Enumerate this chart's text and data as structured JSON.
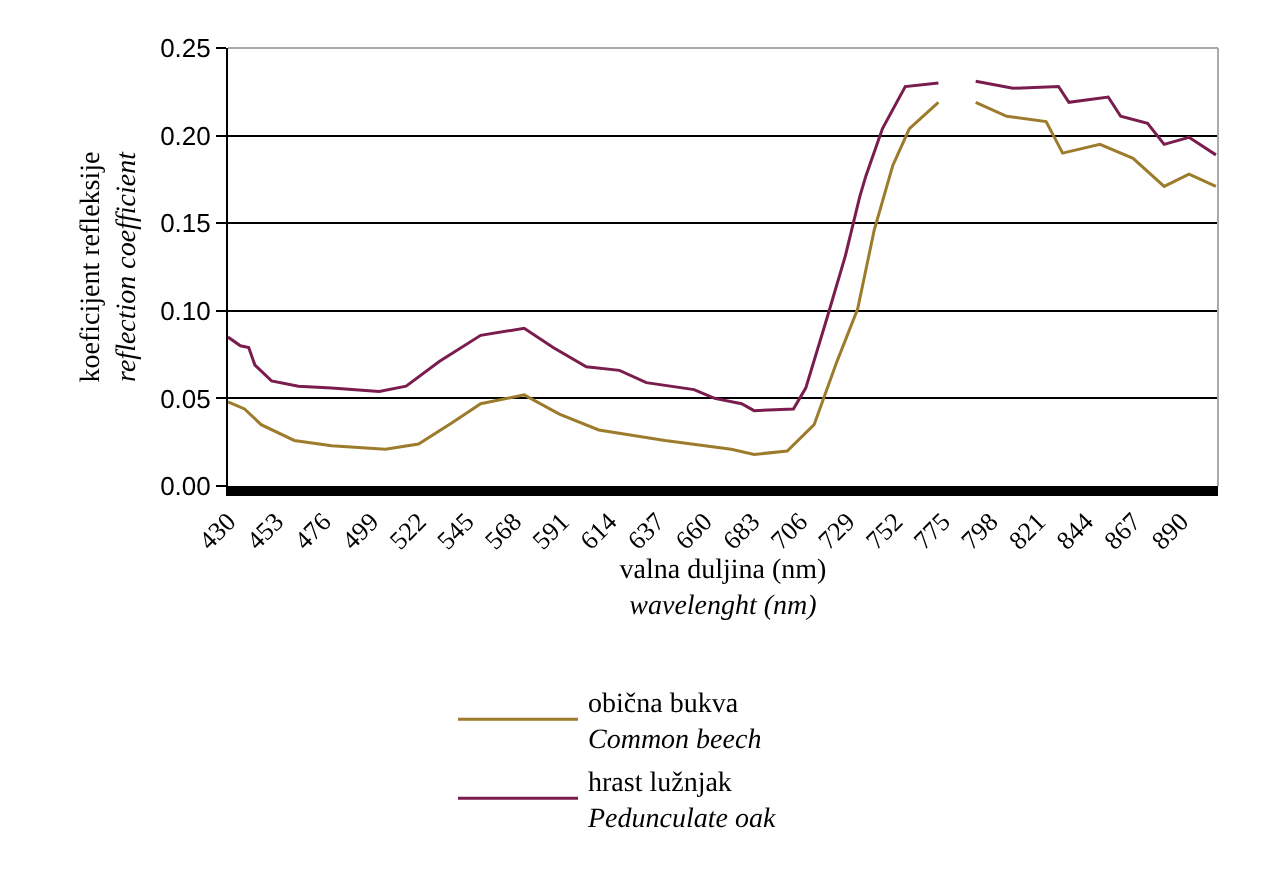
{
  "chart_data": {
    "type": "line",
    "xlabel": "valna duljina (nm)\nwavelenght (nm)",
    "ylabel": "koeficijent refleksije\nreflection coefficient",
    "xlim": [
      430,
      908
    ],
    "xticks": [
      430,
      453,
      476,
      499,
      522,
      545,
      568,
      591,
      614,
      637,
      660,
      683,
      706,
      729,
      752,
      775,
      798,
      821,
      844,
      867,
      890
    ],
    "ylim": [
      0,
      0.25
    ],
    "yticks": [
      {
        "value": 0,
        "label": "0.00"
      },
      {
        "value": 0.05,
        "label": "0.05"
      },
      {
        "value": 0.1,
        "label": "0.10"
      },
      {
        "value": 0.15,
        "label": "0.15"
      },
      {
        "value": 0.2,
        "label": "0.20"
      },
      {
        "value": 0.25,
        "label": "0.25"
      }
    ],
    "grid": "y",
    "legend": "bottom",
    "marker": "none",
    "line_style": "solid",
    "series": [
      {
        "name": "obična bukva\nCommon beech",
        "color": "#9c7c2c",
        "x": [
          430,
          438,
          446,
          462,
          480,
          506,
          522,
          538,
          552,
          573,
          590,
          609,
          641,
          673,
          684,
          700,
          713,
          724,
          734,
          742,
          751,
          759,
          773,
          780,
          791,
          806,
          825,
          833,
          851,
          867,
          882,
          894,
          907
        ],
        "values": [
          0.048,
          0.044,
          0.035,
          0.026,
          0.023,
          0.021,
          0.024,
          0.036,
          0.047,
          0.052,
          0.041,
          0.032,
          0.026,
          0.021,
          0.018,
          0.02,
          0.035,
          0.071,
          0.101,
          0.146,
          0.183,
          0.204,
          0.219,
          null,
          0.219,
          0.211,
          0.208,
          0.19,
          0.195,
          0.187,
          0.171,
          0.178,
          0.171
        ]
      },
      {
        "name": "hrast lužnjak\nPedunculate oak",
        "color": "#7a1d4e",
        "x": [
          430,
          436,
          440,
          443,
          451,
          464,
          480,
          503,
          516,
          532,
          552,
          573,
          587,
          603,
          619,
          632,
          655,
          665,
          678,
          684,
          703,
          709,
          719,
          728,
          735,
          738,
          746,
          757,
          773,
          780,
          791,
          809,
          831,
          836,
          855,
          861,
          874,
          882,
          894,
          907
        ],
        "values": [
          0.085,
          0.08,
          0.079,
          0.069,
          0.06,
          0.057,
          0.056,
          0.054,
          0.057,
          0.071,
          0.086,
          0.09,
          0.079,
          0.068,
          0.066,
          0.059,
          0.055,
          0.05,
          0.047,
          0.043,
          0.044,
          0.056,
          0.095,
          0.131,
          0.165,
          0.177,
          0.204,
          0.228,
          0.23,
          null,
          0.231,
          0.227,
          0.228,
          0.219,
          0.222,
          0.211,
          0.207,
          0.195,
          0.199,
          0.189
        ]
      }
    ]
  }
}
